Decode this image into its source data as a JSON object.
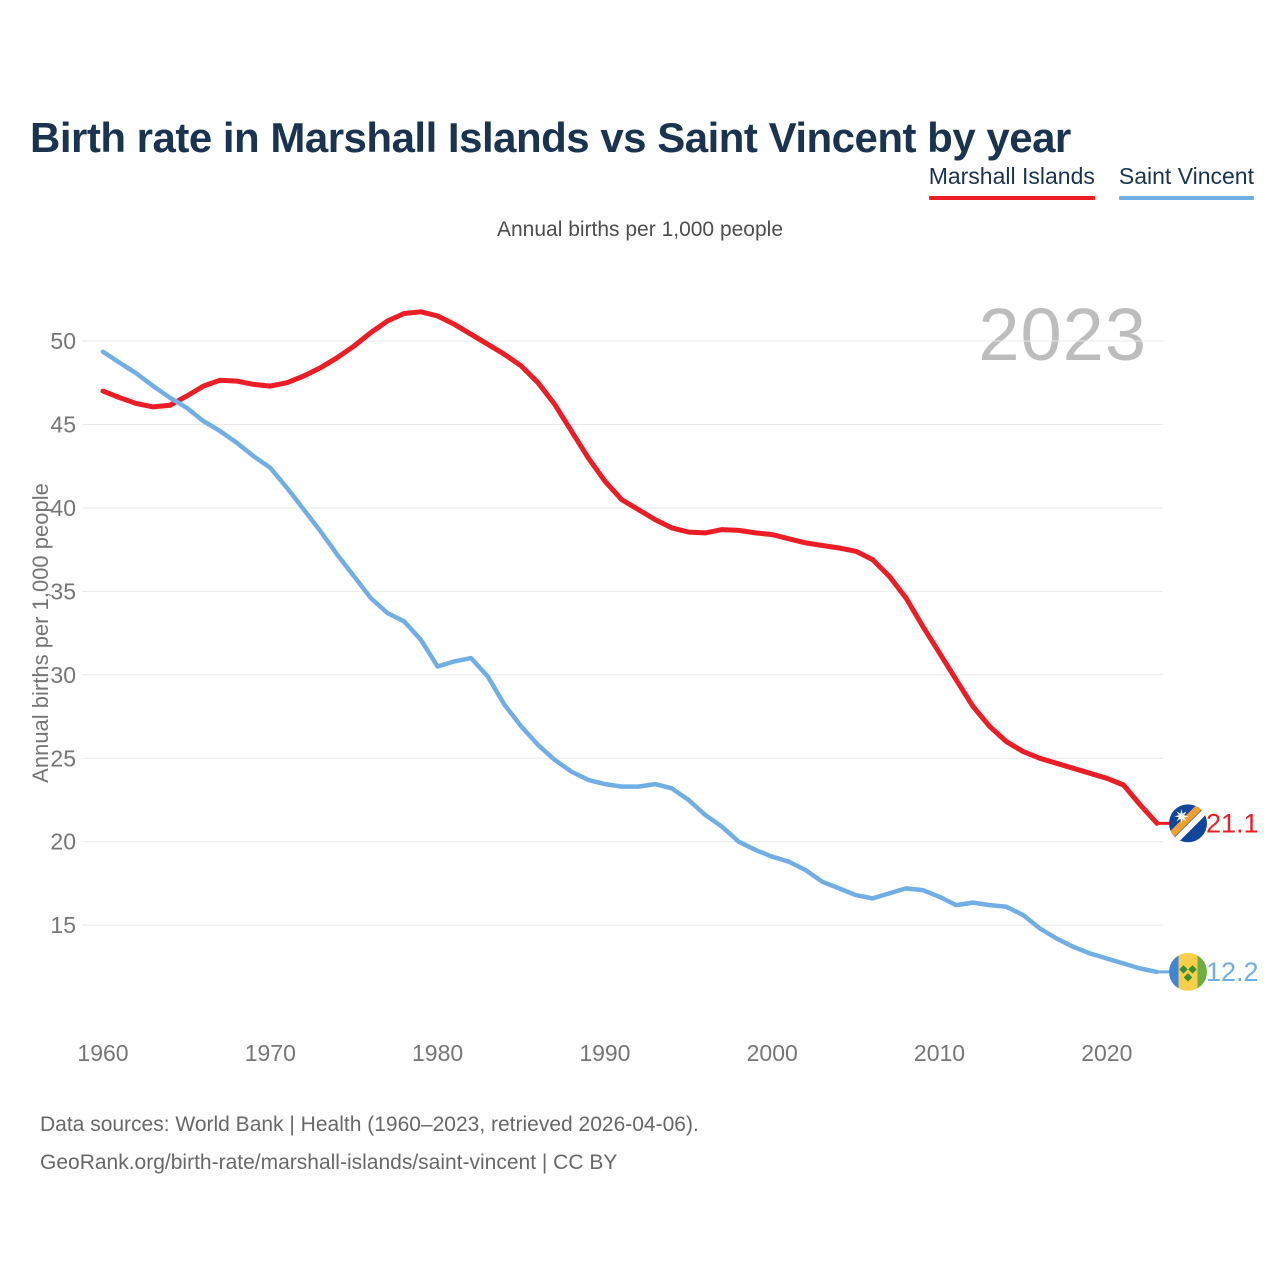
{
  "header": {
    "title": "Birth rate in Marshall Islands vs Saint Vincent by year",
    "subtitle": "Annual births per 1,000 people"
  },
  "watermark": "2023",
  "footer": {
    "line1": "Data sources: World Bank | Health (1960–2023, retrieved 2026-04-06).",
    "line2": "GeoRank.org/birth-rate/marshall-islands/saint-vincent | CC BY"
  },
  "colors": {
    "marshall_islands": "#ec1d25",
    "saint_vincent": "#72aee6",
    "grid": "#e9e9e9",
    "axis_text": "#767676",
    "title_text": "#1a3350"
  },
  "flags": {
    "marshall_islands": {
      "icon": "marshall-islands-flag-icon",
      "blue": "#12459c",
      "orange": "#f29f2e",
      "white": "#ffffff"
    },
    "saint_vincent": {
      "icon": "saint-vincent-flag-icon",
      "blue": "#4285d6",
      "yellow": "#f8cf4a",
      "green": "#6cae44",
      "diamond": "#3a8e2d"
    }
  },
  "chart_data": {
    "type": "line",
    "title": "Birth rate in Marshall Islands vs Saint Vincent by year",
    "subtitle": "Annual births per 1,000 people",
    "xlabel": "",
    "ylabel": "Annual births per 1,000 people",
    "grid": true,
    "legend_position": "top-right",
    "ylim": [
      11.5,
      53
    ],
    "y_ticks": [
      50,
      45,
      40,
      35,
      30,
      25,
      20,
      15
    ],
    "x_ticks": [
      1960,
      1970,
      1980,
      1990,
      2000,
      2010,
      2020
    ],
    "x": [
      1960,
      1961,
      1962,
      1963,
      1964,
      1965,
      1966,
      1967,
      1968,
      1969,
      1970,
      1971,
      1972,
      1973,
      1974,
      1975,
      1976,
      1977,
      1978,
      1979,
      1980,
      1981,
      1982,
      1983,
      1984,
      1985,
      1986,
      1987,
      1988,
      1989,
      1990,
      1991,
      1992,
      1993,
      1994,
      1995,
      1996,
      1997,
      1998,
      1999,
      2000,
      2001,
      2002,
      2003,
      2004,
      2005,
      2006,
      2007,
      2008,
      2009,
      2010,
      2011,
      2012,
      2013,
      2014,
      2015,
      2016,
      2017,
      2018,
      2019,
      2020,
      2021,
      2022,
      2023
    ],
    "series": [
      {
        "name": "Marshall Islands",
        "color": "#ec1d25",
        "end_label": "21.1",
        "end_value": 21.1,
        "values": [
          47.0,
          46.6,
          46.25,
          46.05,
          46.15,
          46.7,
          47.3,
          47.65,
          47.6,
          47.4,
          47.3,
          47.5,
          47.9,
          48.4,
          49.0,
          49.7,
          50.5,
          51.2,
          51.65,
          51.75,
          51.5,
          51.0,
          50.4,
          49.8,
          49.2,
          48.5,
          47.5,
          46.2,
          44.6,
          43.0,
          41.6,
          40.5,
          39.9,
          39.3,
          38.8,
          38.55,
          38.5,
          38.7,
          38.65,
          38.5,
          38.4,
          38.15,
          37.9,
          37.75,
          37.6,
          37.4,
          36.9,
          35.9,
          34.6,
          32.9,
          31.3,
          29.7,
          28.1,
          26.9,
          26.0,
          25.4,
          25.0,
          24.7,
          24.4,
          24.1,
          23.8,
          23.4,
          22.2,
          21.1
        ]
      },
      {
        "name": "Saint Vincent",
        "color": "#72aee6",
        "end_label": "12.2",
        "end_value": 12.2,
        "values": [
          49.35,
          48.7,
          48.05,
          47.3,
          46.6,
          46.0,
          45.2,
          44.6,
          43.9,
          43.1,
          42.4,
          41.2,
          39.9,
          38.6,
          37.2,
          35.9,
          34.6,
          33.7,
          33.2,
          32.1,
          30.5,
          30.8,
          31.0,
          29.9,
          28.2,
          26.9,
          25.8,
          24.9,
          24.2,
          23.7,
          23.45,
          23.3,
          23.3,
          23.45,
          23.2,
          22.5,
          21.6,
          20.9,
          20.0,
          19.5,
          19.1,
          18.8,
          18.3,
          17.6,
          17.2,
          16.8,
          16.6,
          16.9,
          17.2,
          17.1,
          16.7,
          16.2,
          16.35,
          16.2,
          16.1,
          15.6,
          14.8,
          14.2,
          13.7,
          13.3,
          13.0,
          12.7,
          12.4,
          12.2
        ]
      }
    ]
  }
}
